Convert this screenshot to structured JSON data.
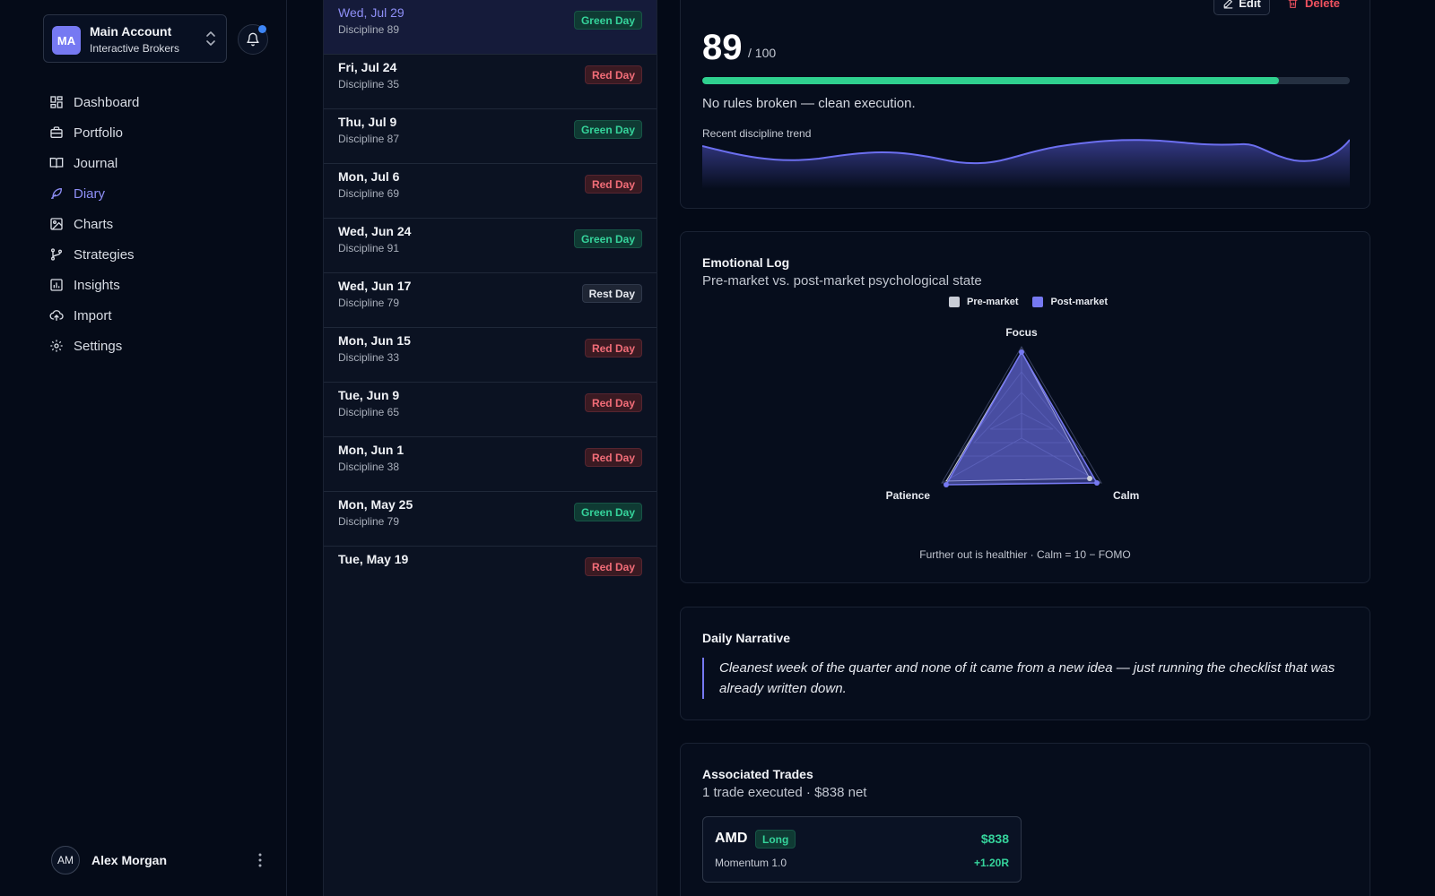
{
  "account": {
    "initials": "MA",
    "name": "Main Account",
    "broker": "Interactive Brokers"
  },
  "nav": [
    {
      "label": "Dashboard",
      "icon": "dashboard-icon"
    },
    {
      "label": "Portfolio",
      "icon": "briefcase-icon"
    },
    {
      "label": "Journal",
      "icon": "book-icon"
    },
    {
      "label": "Diary",
      "icon": "feather-icon",
      "active": true
    },
    {
      "label": "Charts",
      "icon": "image-chart-icon"
    },
    {
      "label": "Strategies",
      "icon": "git-branch-icon"
    },
    {
      "label": "Insights",
      "icon": "bar-chart-icon"
    },
    {
      "label": "Import",
      "icon": "cloud-upload-icon"
    },
    {
      "label": "Settings",
      "icon": "gear-icon"
    }
  ],
  "user": {
    "initials": "AM",
    "name": "Alex Morgan"
  },
  "entries": [
    {
      "date": "Wed, Jul 29",
      "discipline": "Discipline 89",
      "badge": "Green Day",
      "kind": "green"
    },
    {
      "date": "Fri, Jul 24",
      "discipline": "Discipline 35",
      "badge": "Red Day",
      "kind": "red"
    },
    {
      "date": "Thu, Jul 9",
      "discipline": "Discipline 87",
      "badge": "Green Day",
      "kind": "green"
    },
    {
      "date": "Mon, Jul 6",
      "discipline": "Discipline 69",
      "badge": "Red Day",
      "kind": "red"
    },
    {
      "date": "Wed, Jun 24",
      "discipline": "Discipline 91",
      "badge": "Green Day",
      "kind": "green"
    },
    {
      "date": "Wed, Jun 17",
      "discipline": "Discipline 79",
      "badge": "Rest Day",
      "kind": "rest"
    },
    {
      "date": "Mon, Jun 15",
      "discipline": "Discipline 33",
      "badge": "Red Day",
      "kind": "red"
    },
    {
      "date": "Tue, Jun 9",
      "discipline": "Discipline 65",
      "badge": "Red Day",
      "kind": "red"
    },
    {
      "date": "Mon, Jun 1",
      "discipline": "Discipline 38",
      "badge": "Red Day",
      "kind": "red"
    },
    {
      "date": "Mon, May 25",
      "discipline": "Discipline 79",
      "badge": "Green Day",
      "kind": "green"
    },
    {
      "date": "Tue, May 19",
      "discipline": "",
      "badge": "Red Day",
      "kind": "red"
    }
  ],
  "detail": {
    "edit_label": "Edit",
    "delete_label": "Delete",
    "score": "89",
    "score_max": "/ 100",
    "score_fraction": 0.89,
    "rules_text": "No rules broken — clean execution.",
    "trend_label": "Recent discipline trend"
  },
  "emotional": {
    "title": "Emotional Log",
    "subtitle": "Pre-market vs. post-market psychological state",
    "legend_pre": "Pre-market",
    "legend_post": "Post-market",
    "axis_focus": "Focus",
    "axis_patience": "Patience",
    "axis_calm": "Calm",
    "note": "Further out is healthier · Calm = 10 − FOMO"
  },
  "narrative": {
    "title": "Daily Narrative",
    "text": "Cleanest week of the quarter and none of it came from a new idea — just running the checklist that was already written down."
  },
  "trades": {
    "title": "Associated Trades",
    "subtitle": "1 trade executed · $838 net",
    "items": [
      {
        "symbol": "AMD",
        "side": "Long",
        "pnl": "$838",
        "strategy": "Momentum 1.0",
        "r": "+1.20R"
      }
    ]
  },
  "colors": {
    "accent": "#7679f2",
    "green": "#35d39b",
    "red": "#f26d78",
    "progress": "#2fd08f"
  }
}
